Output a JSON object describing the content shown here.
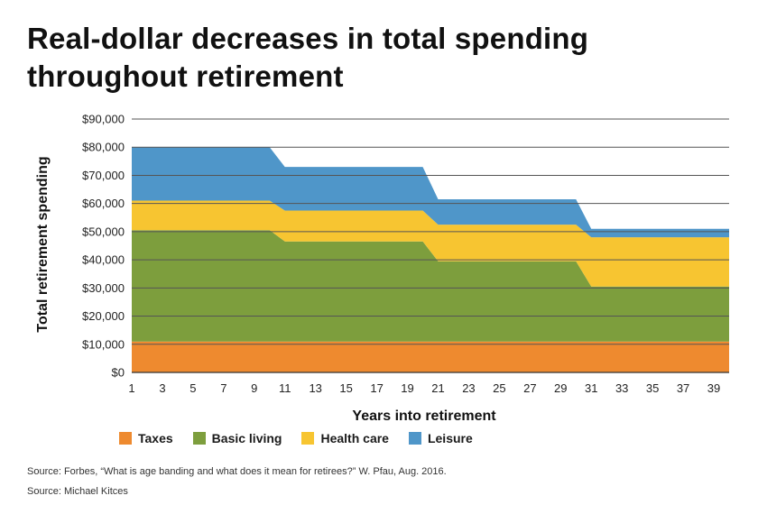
{
  "title_lines": [
    "Real-dollar decreases in total spending",
    "throughout retirement"
  ],
  "chart_data": {
    "type": "area",
    "stacked": true,
    "x": [
      1,
      2,
      3,
      4,
      5,
      6,
      7,
      8,
      9,
      10,
      11,
      12,
      13,
      14,
      15,
      16,
      17,
      18,
      19,
      20,
      21,
      22,
      23,
      24,
      25,
      26,
      27,
      28,
      29,
      30,
      31,
      32,
      33,
      34,
      35,
      36,
      37,
      38,
      39,
      40
    ],
    "x_ticks": [
      1,
      3,
      5,
      7,
      9,
      11,
      13,
      15,
      17,
      19,
      21,
      23,
      25,
      27,
      29,
      31,
      33,
      35,
      37,
      39
    ],
    "xlabel": "Years into retirement",
    "ylabel": "Total retirement spending",
    "ylim": [
      0,
      90000
    ],
    "y_ticks": [
      0,
      10000,
      20000,
      30000,
      40000,
      50000,
      60000,
      70000,
      80000,
      90000
    ],
    "y_tick_labels": [
      "$0",
      "$10,000",
      "$20,000",
      "$30,000",
      "$40,000",
      "$50,000",
      "$60,000",
      "$70,000",
      "$80,000",
      "$90,000"
    ],
    "grid": "horizontal",
    "legend_position": "bottom",
    "series": [
      {
        "name": "Taxes",
        "color": "#ee8a2f",
        "values": [
          11000,
          11000,
          11000,
          11000,
          11000,
          11000,
          11000,
          11000,
          11000,
          11000,
          11000,
          11000,
          11000,
          11000,
          11000,
          11000,
          11000,
          11000,
          11000,
          11000,
          11000,
          11000,
          11000,
          11000,
          11000,
          11000,
          11000,
          11000,
          11000,
          11000,
          11000,
          11000,
          11000,
          11000,
          11000,
          11000,
          11000,
          11000,
          11000,
          11000
        ]
      },
      {
        "name": "Basic living",
        "color": "#7d9e3d",
        "values": [
          39500,
          39500,
          39500,
          39500,
          39500,
          39500,
          39500,
          39500,
          39500,
          39500,
          35500,
          35500,
          35500,
          35500,
          35500,
          35500,
          35500,
          35500,
          35500,
          35500,
          28500,
          28500,
          28500,
          28500,
          28500,
          28500,
          28500,
          28500,
          28500,
          28500,
          19500,
          19500,
          19500,
          19500,
          19500,
          19500,
          19500,
          19500,
          19500,
          19500
        ]
      },
      {
        "name": "Health care",
        "color": "#f7c531",
        "values": [
          10500,
          10500,
          10500,
          10500,
          10500,
          10500,
          10500,
          10500,
          10500,
          10500,
          11000,
          11000,
          11000,
          11000,
          11000,
          11000,
          11000,
          11000,
          11000,
          11000,
          13000,
          13000,
          13000,
          13000,
          13000,
          13000,
          13000,
          13000,
          13000,
          13000,
          17500,
          17500,
          17500,
          17500,
          17500,
          17500,
          17500,
          17500,
          17500,
          17500
        ]
      },
      {
        "name": "Leisure",
        "color": "#4f96c9",
        "values": [
          19000,
          19000,
          19000,
          19000,
          19000,
          19000,
          19000,
          19000,
          19000,
          19000,
          15500,
          15500,
          15500,
          15500,
          15500,
          15500,
          15500,
          15500,
          15500,
          15500,
          9000,
          9000,
          9000,
          9000,
          9000,
          9000,
          9000,
          9000,
          9000,
          9000,
          3000,
          3000,
          3000,
          3000,
          3000,
          3000,
          3000,
          3000,
          3000,
          3000
        ]
      }
    ]
  },
  "sources": [
    "Source: Forbes, “What is age banding and what does it mean for retirees?” W. Pfau, Aug. 2016.",
    "Source: Michael Kitces"
  ]
}
